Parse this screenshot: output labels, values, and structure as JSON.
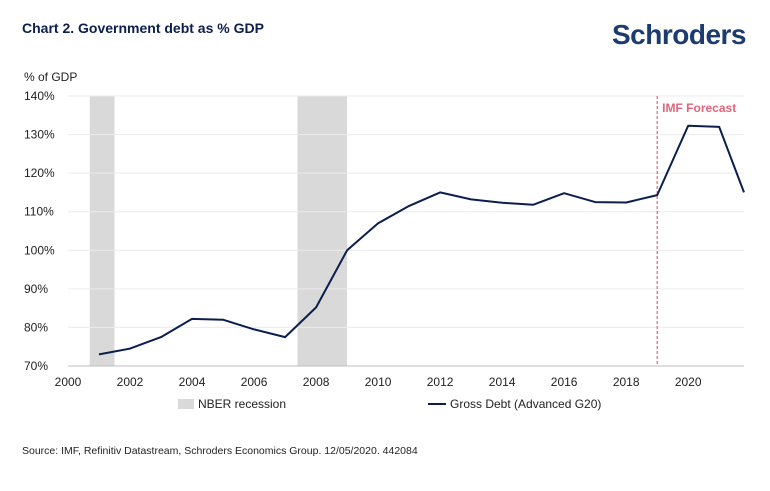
{
  "header": {
    "title": "Chart 2. Government debt as % GDP",
    "brand": "Schroders"
  },
  "footer": {
    "source": "Source: IMF, Refinitiv Datastream, Schroders Economics Group. 12/05/2020. 442084"
  },
  "chart_data": {
    "type": "line",
    "ylabel": "% of GDP",
    "xlabel": "",
    "xlim": [
      2000,
      2021.8
    ],
    "ylim": [
      70,
      140
    ],
    "x_ticks": [
      "2000",
      "2002",
      "2004",
      "2006",
      "2008",
      "2010",
      "2012",
      "2014",
      "2016",
      "2018",
      "2020"
    ],
    "y_ticks": [
      "70%",
      "80%",
      "90%",
      "100%",
      "110%",
      "120%",
      "130%",
      "140%"
    ],
    "grid": "horizontal",
    "legend_position": "bottom",
    "series": [
      {
        "name": "Gross Debt (Advanced G20)",
        "color": "#0b1e4d",
        "x": [
          2001,
          2002,
          2003,
          2004,
          2005,
          2006,
          2007,
          2008,
          2009,
          2010,
          2011,
          2012,
          2013,
          2014,
          2015,
          2016,
          2017,
          2018,
          2019,
          2020,
          2021,
          2021.8
        ],
        "values": [
          73.0,
          74.5,
          77.5,
          82.2,
          82.0,
          79.5,
          77.5,
          85.2,
          100.0,
          107.0,
          111.5,
          115.0,
          113.2,
          112.3,
          111.8,
          114.8,
          112.5,
          112.4,
          114.3,
          132.3,
          132.0,
          115.0
        ]
      }
    ],
    "shaded_regions": {
      "name": "NBER recession",
      "color": "#d9d9d9",
      "ranges": [
        [
          2000.7,
          2001.5
        ],
        [
          2007.4,
          2009.0
        ]
      ]
    },
    "annotations": [
      {
        "label": "IMF Forecast",
        "x": 2019.0,
        "color": "#e0667d",
        "style": "dashed-vertical-line"
      }
    ]
  }
}
